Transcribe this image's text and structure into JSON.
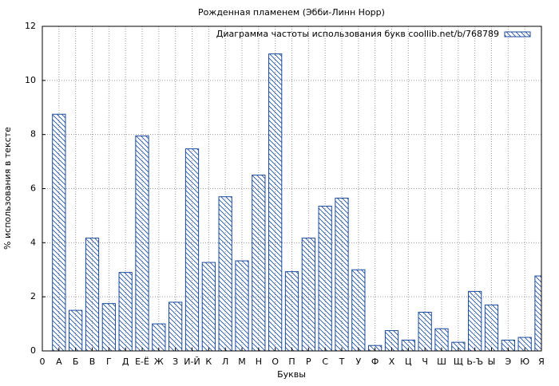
{
  "chart_data": {
    "type": "bar",
    "title": "Рожденная пламенем (Эбби-Линн Норр)",
    "xlabel": "Буквы",
    "ylabel": "% использования в тексте",
    "x": [
      1,
      2,
      3,
      4,
      5,
      6,
      7,
      8,
      9,
      10,
      11,
      12,
      13,
      14,
      15,
      16,
      17,
      18,
      19,
      20,
      21,
      22,
      23,
      24,
      25,
      26,
      27,
      28,
      29,
      30
    ],
    "series": [
      {
        "name": "Диаграмма частоты использования букв coollib.net/b/768789",
        "color": "#1a4a9c",
        "values": [
          8.75,
          1.5,
          4.17,
          1.75,
          2.9,
          7.95,
          1.0,
          1.8,
          7.47,
          3.27,
          5.7,
          3.33,
          6.5,
          10.98,
          2.93,
          4.17,
          5.35,
          5.65,
          3.0,
          0.2,
          0.75,
          0.4,
          1.43,
          0.82,
          0.32,
          2.2,
          1.7,
          0.4,
          0.5,
          2.77
        ]
      }
    ],
    "xlim": [
      0,
      30
    ],
    "xticks": [
      0,
      {
        "value": 1,
        "label": "А"
      },
      {
        "value": 2,
        "label": "Б"
      },
      {
        "value": 3,
        "label": "В"
      },
      {
        "value": 4,
        "label": "Г"
      },
      {
        "value": 5,
        "label": "Д"
      },
      {
        "value": 6,
        "label": "Е-Ё"
      },
      {
        "value": 7,
        "label": "Ж"
      },
      {
        "value": 8,
        "label": "З"
      },
      {
        "value": 9,
        "label": "И-Й"
      },
      {
        "value": 10,
        "label": "К"
      },
      {
        "value": 11,
        "label": "Л"
      },
      {
        "value": 12,
        "label": "М"
      },
      {
        "value": 13,
        "label": "Н"
      },
      {
        "value": 14,
        "label": "О"
      },
      {
        "value": 15,
        "label": "П"
      },
      {
        "value": 16,
        "label": "Р"
      },
      {
        "value": 17,
        "label": "С"
      },
      {
        "value": 18,
        "label": "Т"
      },
      {
        "value": 19,
        "label": "У"
      },
      {
        "value": 20,
        "label": "Ф"
      },
      {
        "value": 21,
        "label": "Х"
      },
      {
        "value": 22,
        "label": "Ц"
      },
      {
        "value": 23,
        "label": "Ч"
      },
      {
        "value": 24,
        "label": "Ш"
      },
      {
        "value": 25,
        "label": "Щ"
      },
      {
        "value": 26,
        "label": "Ь-Ъ"
      },
      {
        "value": 27,
        "label": "Ы"
      },
      {
        "value": 28,
        "label": "Э"
      },
      {
        "value": 29,
        "label": "Ю"
      },
      {
        "value": 30,
        "label": "Я"
      }
    ],
    "ylim": [
      0,
      12
    ],
    "yticks": [
      0,
      2,
      4,
      6,
      8,
      10,
      12
    ],
    "grid": true,
    "legend": "upper-right"
  }
}
